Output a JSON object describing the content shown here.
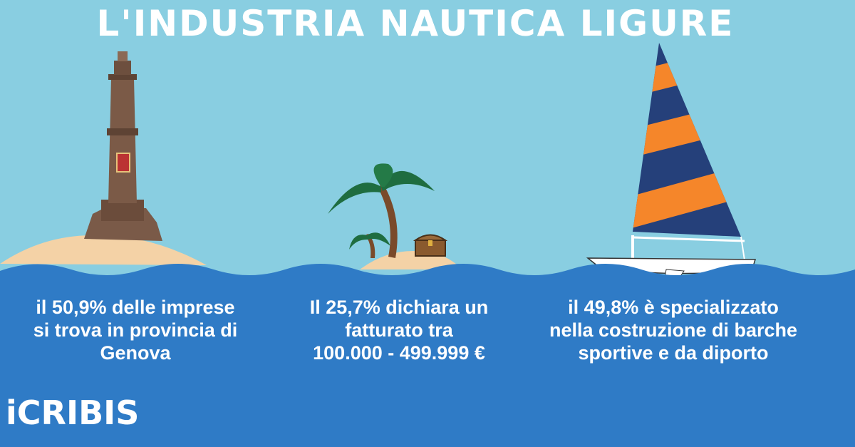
{
  "header": {
    "title": "L'INDUSTRIA NAUTICA LIGURE"
  },
  "facts": [
    {
      "lines": [
        "il 50,9% delle imprese",
        "si trova in provincia di",
        "Genova"
      ]
    },
    {
      "lines": [
        "Il 25,7% dichiara un",
        "fatturato tra",
        "100.000 - 499.999 €"
      ]
    },
    {
      "lines": [
        "il 49,8% è specializzato",
        "nella costruzione di barche",
        "sportive e da diporto"
      ]
    }
  ],
  "logo": "iCRIBIS"
}
